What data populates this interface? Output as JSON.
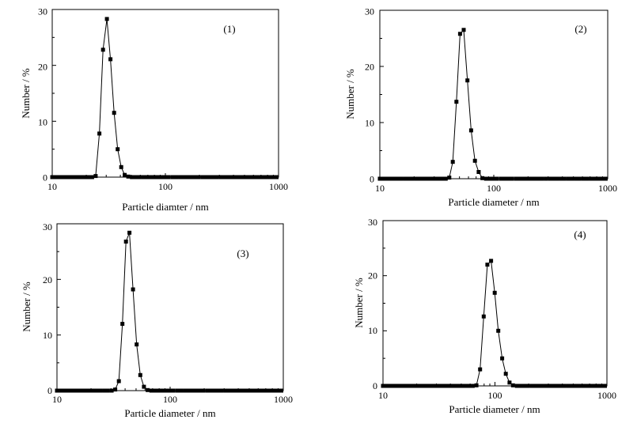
{
  "chart_data": [
    {
      "type": "line",
      "panel_label": "(1)",
      "xlabel": "Particle diamter / nm",
      "ylabel": "Number / %",
      "xscale": "log",
      "xlim": [
        10,
        1000
      ],
      "ylim": [
        0,
        30
      ],
      "xticks": [
        "10",
        "100",
        "1000"
      ],
      "yticks": [
        "0",
        "10",
        "20",
        "30"
      ],
      "series": [
        {
          "x": [
            10.0,
            10.8,
            11.6,
            12.5,
            13.4,
            14.4,
            15.5,
            16.7,
            18.0,
            19.4,
            20.9,
            22.5,
            24.2,
            26.1,
            28.1,
            30.4,
            32.7,
            35.2,
            37.9,
            40.7,
            43.7,
            47.0,
            50.6,
            54.5,
            58.7,
            63.3,
            68.3,
            73.7,
            79.4,
            85.6,
            92.3,
            99.5,
            107,
            116,
            125,
            135,
            145,
            157,
            169,
            182,
            196,
            212,
            228,
            246,
            265,
            286,
            309,
            333,
            359,
            387,
            418,
            451,
            486,
            524,
            565,
            610,
            658,
            710,
            766,
            826,
            891,
            960
          ],
          "y": [
            0,
            0,
            0,
            0,
            0,
            0,
            0,
            0,
            0,
            0,
            0,
            0,
            0.2,
            7.8,
            22.8,
            28.3,
            21.1,
            11.5,
            5.0,
            1.8,
            0.4,
            0.1,
            0,
            0,
            0,
            0,
            0,
            0,
            0,
            0,
            0,
            0,
            0,
            0,
            0,
            0,
            0,
            0,
            0,
            0,
            0,
            0,
            0,
            0,
            0,
            0,
            0,
            0,
            0,
            0,
            0,
            0,
            0,
            0,
            0,
            0,
            0,
            0,
            0,
            0,
            0,
            0
          ]
        }
      ]
    },
    {
      "type": "line",
      "panel_label": "(2)",
      "xlabel": "Particle diameter / nm",
      "ylabel": "Number / %",
      "xscale": "log",
      "xlim": [
        10,
        1000
      ],
      "ylim": [
        0,
        30
      ],
      "xticks": [
        "10",
        "100",
        "1000"
      ],
      "yticks": [
        "0",
        "10",
        "20",
        "30"
      ],
      "series": [
        {
          "x": [
            10.0,
            10.8,
            11.6,
            12.5,
            13.4,
            14.4,
            15.5,
            16.7,
            18.0,
            19.4,
            20.9,
            22.5,
            24.2,
            26.1,
            28.1,
            30.4,
            32.7,
            35.2,
            37.9,
            40.7,
            43.7,
            47.0,
            50.6,
            54.5,
            58.7,
            63.3,
            68.3,
            73.7,
            79.4,
            85.6,
            92.3,
            99.5,
            107,
            116,
            125,
            135,
            145,
            157,
            169,
            182,
            196,
            212,
            228,
            246,
            265,
            286,
            309,
            333,
            359,
            387,
            418,
            451,
            486,
            524,
            565,
            610,
            658,
            710,
            766,
            826,
            891,
            960
          ],
          "y": [
            0,
            0,
            0,
            0,
            0,
            0,
            0,
            0,
            0,
            0,
            0,
            0,
            0,
            0,
            0,
            0,
            0,
            0,
            0,
            0.2,
            3.0,
            13.7,
            25.8,
            26.5,
            17.5,
            8.6,
            3.2,
            1.2,
            0.1,
            0,
            0,
            0,
            0,
            0,
            0,
            0,
            0,
            0,
            0,
            0,
            0,
            0,
            0,
            0,
            0,
            0,
            0,
            0,
            0,
            0,
            0,
            0,
            0,
            0,
            0,
            0,
            0,
            0,
            0,
            0,
            0,
            0
          ]
        }
      ]
    },
    {
      "type": "line",
      "panel_label": "(3)",
      "xlabel": "Particle diameter / nm",
      "ylabel": "Number / %",
      "xscale": "log",
      "xlim": [
        10,
        1000
      ],
      "ylim": [
        0,
        30
      ],
      "xticks": [
        "10",
        "100",
        "1000"
      ],
      "yticks": [
        "0",
        "10",
        "20",
        "30"
      ],
      "series": [
        {
          "x": [
            10.0,
            10.8,
            11.6,
            12.5,
            13.4,
            14.4,
            15.5,
            16.7,
            18.0,
            19.4,
            20.9,
            22.5,
            24.2,
            26.1,
            28.1,
            30.4,
            32.7,
            35.2,
            37.9,
            40.7,
            43.7,
            47.0,
            50.6,
            54.5,
            58.7,
            63.3,
            68.3,
            73.7,
            79.4,
            85.6,
            92.3,
            99.5,
            107,
            116,
            125,
            135,
            145,
            157,
            169,
            182,
            196,
            212,
            228,
            246,
            265,
            286,
            309,
            333,
            359,
            387,
            418,
            451,
            486,
            524,
            565,
            610,
            658,
            710,
            766,
            826,
            891,
            960
          ],
          "y": [
            0,
            0,
            0,
            0,
            0,
            0,
            0,
            0,
            0,
            0,
            0,
            0,
            0,
            0,
            0,
            0,
            0.2,
            1.7,
            12.0,
            26.8,
            28.4,
            18.2,
            8.3,
            2.8,
            0.7,
            0.1,
            0,
            0,
            0,
            0,
            0,
            0,
            0,
            0,
            0,
            0,
            0,
            0,
            0,
            0,
            0,
            0,
            0,
            0,
            0,
            0,
            0,
            0,
            0,
            0,
            0,
            0,
            0,
            0,
            0,
            0,
            0,
            0,
            0,
            0,
            0,
            0
          ]
        }
      ]
    },
    {
      "type": "line",
      "panel_label": "(4)",
      "xlabel": "Particle diameter / nm",
      "ylabel": "Number / %",
      "xscale": "log",
      "xlim": [
        10,
        1000
      ],
      "ylim": [
        0,
        30
      ],
      "xticks": [
        "10",
        "100",
        "1000"
      ],
      "yticks": [
        "0",
        "10",
        "20",
        "30"
      ],
      "series": [
        {
          "x": [
            10.0,
            10.8,
            11.6,
            12.5,
            13.4,
            14.4,
            15.5,
            16.7,
            18.0,
            19.4,
            20.9,
            22.5,
            24.2,
            26.1,
            28.1,
            30.4,
            32.7,
            35.2,
            37.9,
            40.7,
            43.7,
            47.0,
            50.6,
            54.5,
            58.7,
            63.3,
            68.3,
            73.7,
            79.4,
            85.6,
            92.3,
            99.5,
            107,
            116,
            125,
            135,
            145,
            157,
            169,
            182,
            196,
            212,
            228,
            246,
            265,
            286,
            309,
            333,
            359,
            387,
            418,
            451,
            486,
            524,
            565,
            610,
            658,
            710,
            766,
            826,
            891,
            960
          ],
          "y": [
            0,
            0,
            0,
            0,
            0,
            0,
            0,
            0,
            0,
            0,
            0,
            0,
            0,
            0,
            0,
            0,
            0,
            0,
            0,
            0,
            0,
            0,
            0,
            0,
            0,
            0,
            0.1,
            3.0,
            12.6,
            22.0,
            22.7,
            16.9,
            10.0,
            5.0,
            2.2,
            0.6,
            0.1,
            0,
            0,
            0,
            0,
            0,
            0,
            0,
            0,
            0,
            0,
            0,
            0,
            0,
            0,
            0,
            0,
            0,
            0,
            0,
            0,
            0,
            0,
            0,
            0,
            0
          ]
        }
      ]
    }
  ]
}
